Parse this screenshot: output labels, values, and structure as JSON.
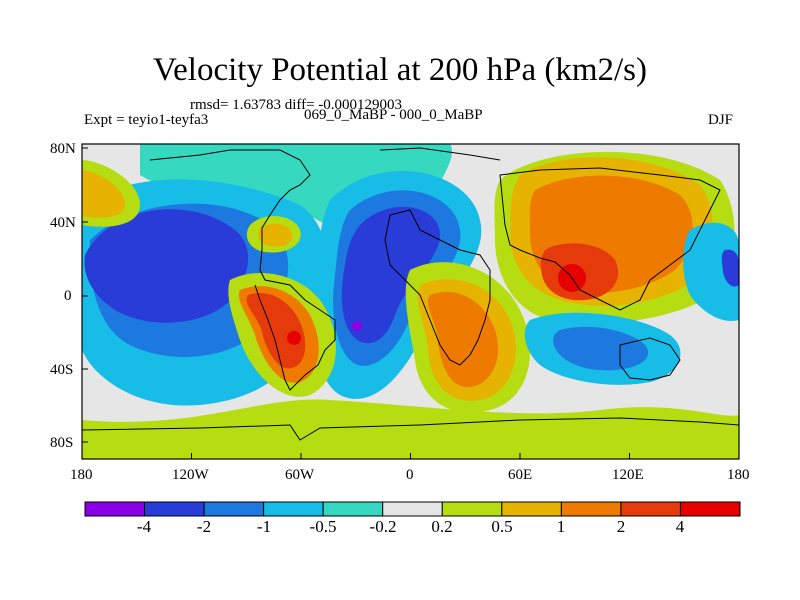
{
  "chart_data": {
    "type": "heatmap",
    "title": "Velocity Potential at 200 hPa (km2/s)",
    "stats": "rmsd= 1.63783 diff= -0.000129003",
    "left_label": "Expt = teyio1-teyfa3",
    "center_label": "069_0_MaBP - 000_0_MaBP",
    "right_label": "DJF",
    "x_ticks": [
      "180",
      "120W",
      "60W",
      "0",
      "60E",
      "120E",
      "180"
    ],
    "y_ticks": [
      "80N",
      "40N",
      "0",
      "40S",
      "80S"
    ],
    "xlim": [
      -180,
      180
    ],
    "ylim": [
      -90,
      90
    ],
    "colorbar": {
      "levels": [
        "-4",
        "-2",
        "-1",
        "-0.5",
        "-0.2",
        "0.2",
        "0.5",
        "1",
        "2",
        "4"
      ],
      "colors": [
        "#8a00e6",
        "#2a3cd8",
        "#1d78e0",
        "#17bde6",
        "#36d8c0",
        "#e6e6e6",
        "#b6dc12",
        "#e6b400",
        "#ee7a00",
        "#e43a0c",
        "#e60000"
      ]
    }
  }
}
